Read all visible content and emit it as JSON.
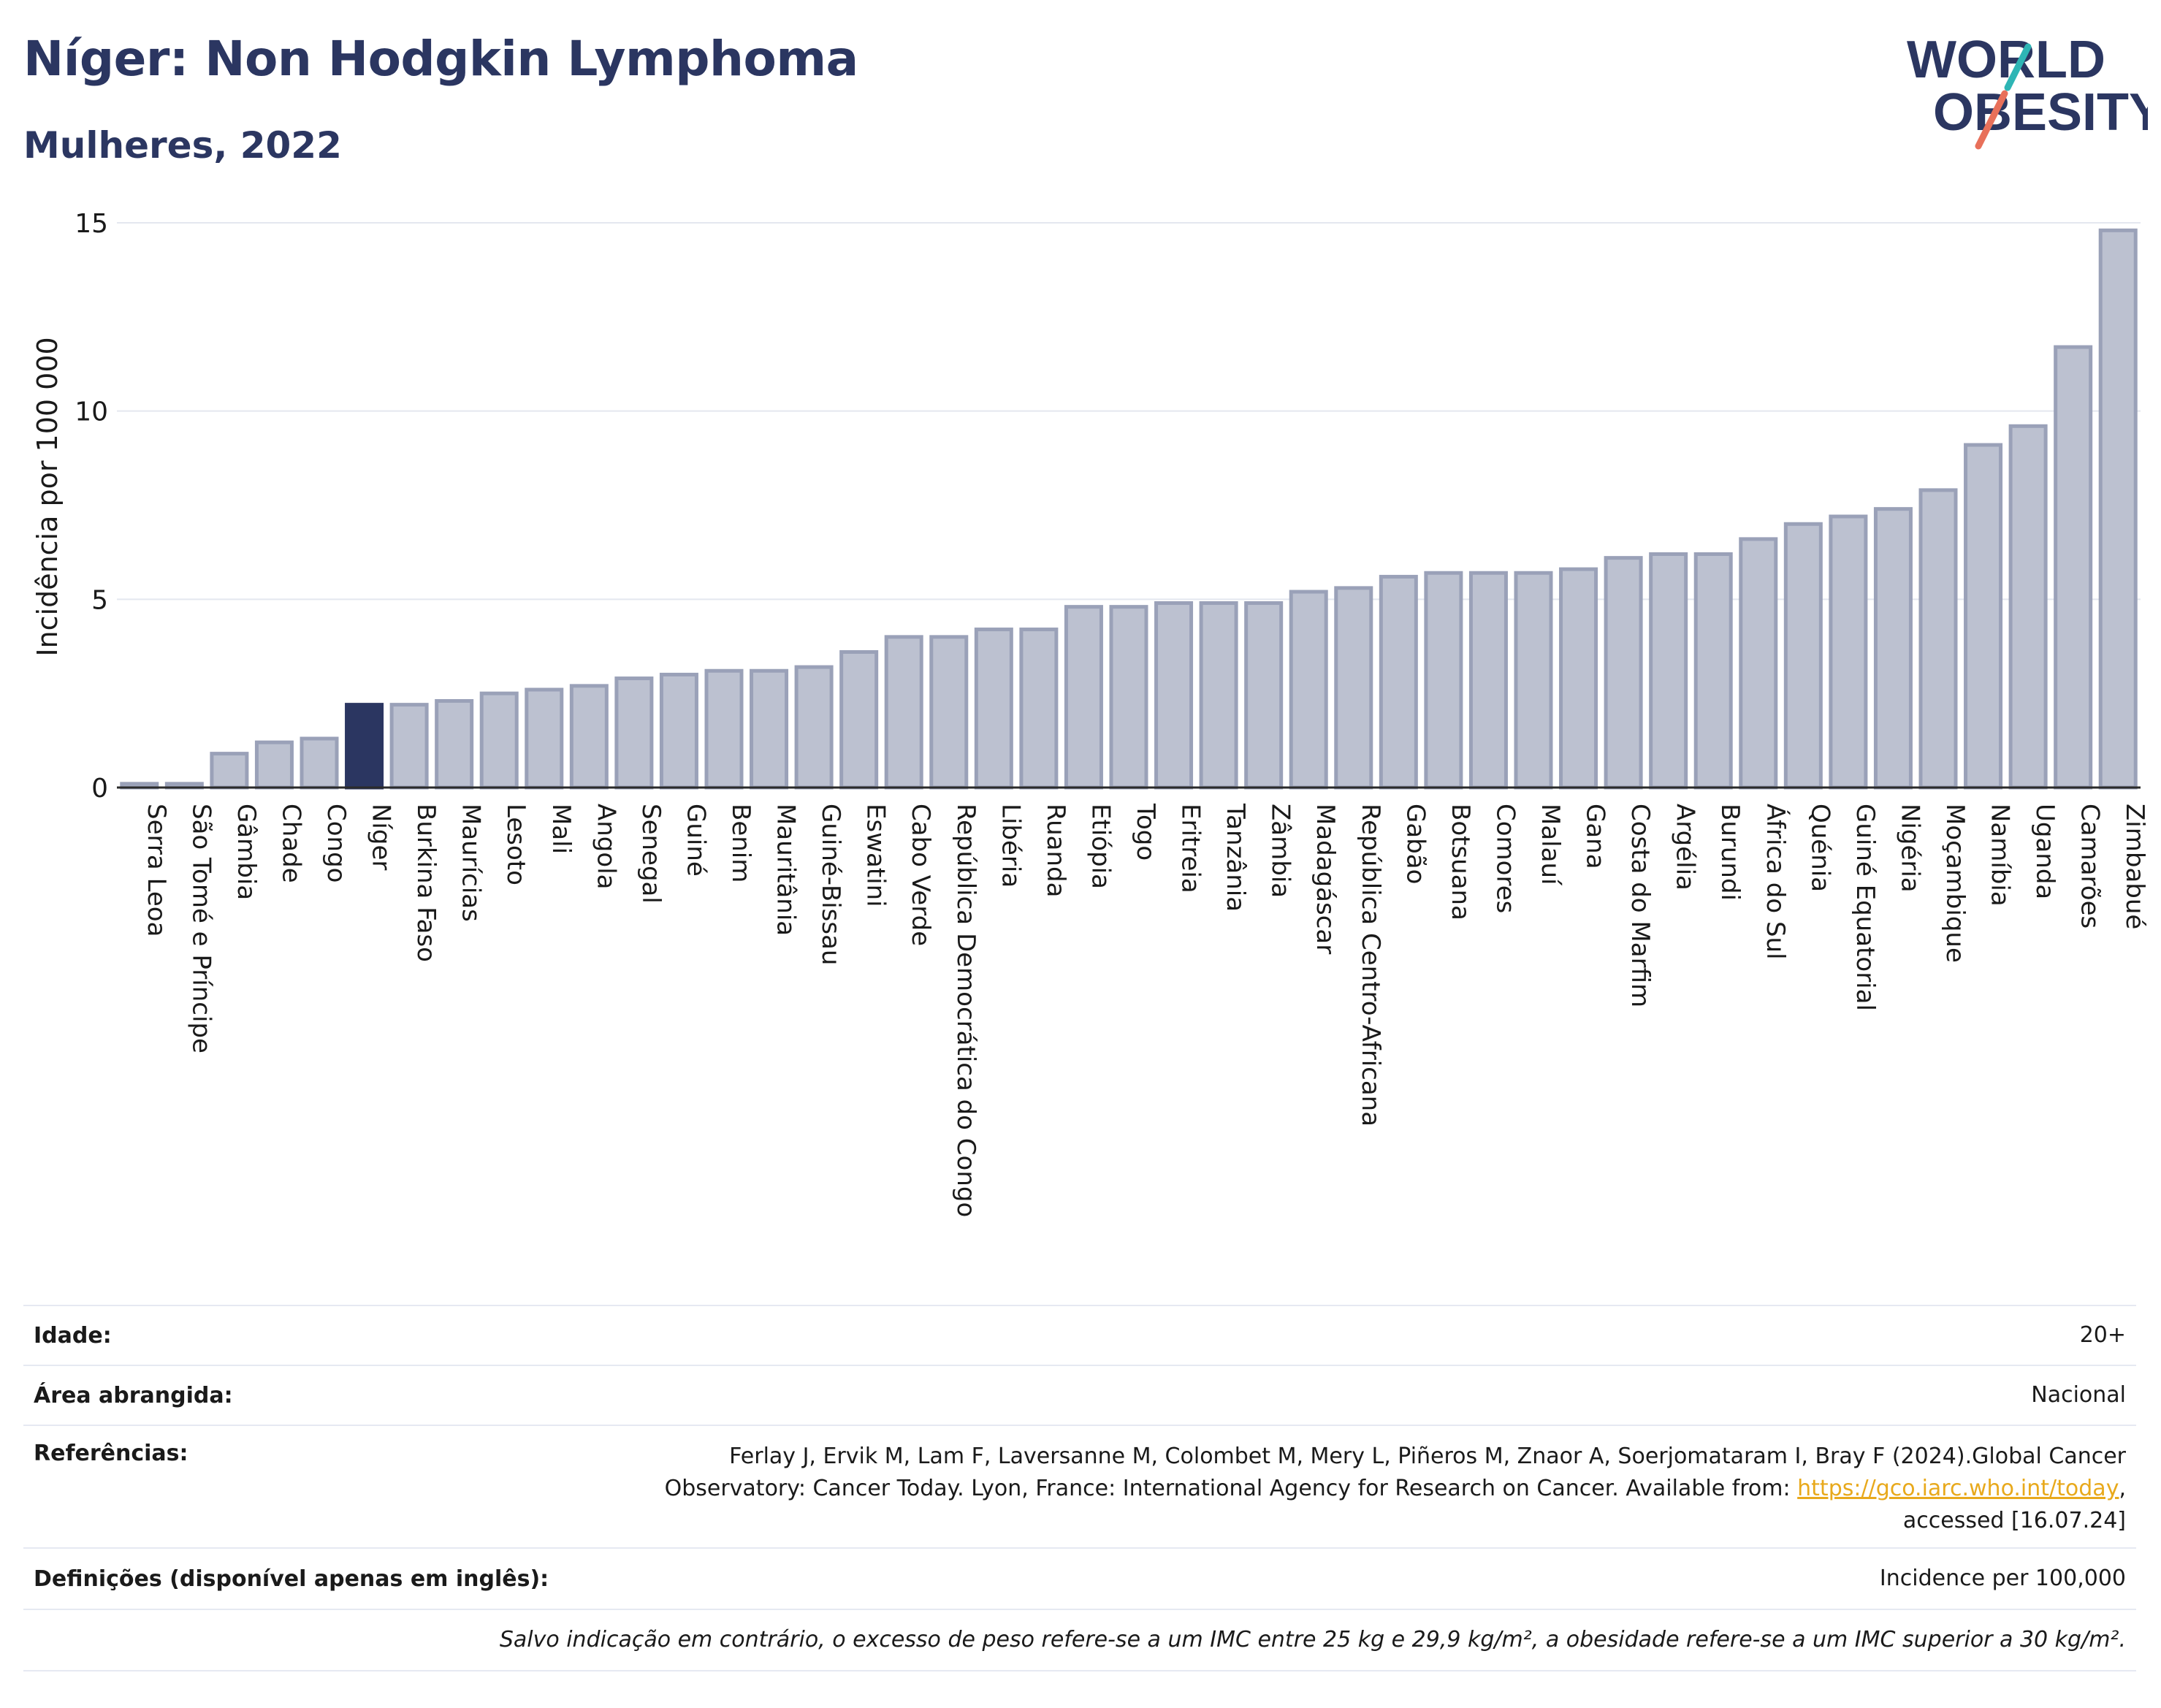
{
  "title": "Níger: Non Hodgkin Lymphoma",
  "subtitle": "Mulheres, 2022",
  "logo": {
    "line1": "WORLD",
    "line2": "OBESITY"
  },
  "colors": {
    "accent": "#2b3661",
    "bar": "#bcc1d0",
    "bar_border": "#9aa1b8",
    "highlight": "#2b3661",
    "link": "#e8a91c"
  },
  "chart_data": {
    "type": "bar",
    "ylabel": "Incidência por 100 000",
    "ylim": [
      0,
      15
    ],
    "yticks": [
      0,
      5,
      10,
      15
    ],
    "grid": true,
    "highlight": "Níger",
    "categories": [
      "Serra Leoa",
      "São Tomé e Príncipe",
      "Gâmbia",
      "Chade",
      "Congo",
      "Níger",
      "Burkina Faso",
      "Maurícias",
      "Lesoto",
      "Mali",
      "Angola",
      "Senegal",
      "Guiné",
      "Benim",
      "Mauritânia",
      "Guiné-Bissau",
      "Eswatini",
      "Cabo Verde",
      "República Democrática do Congo",
      "Libéria",
      "Ruanda",
      "Etiópia",
      "Togo",
      "Eritreia",
      "Tanzânia",
      "Zâmbia",
      "Madagáscar",
      "República Centro-Africana",
      "Gabão",
      "Botsuana",
      "Comores",
      "Malauí",
      "Gana",
      "Costa do Marfim",
      "Argélia",
      "Burundi",
      "África do Sul",
      "Quénia",
      "Guiné Equatorial",
      "Nigéria",
      "Moçambique",
      "Namíbia",
      "Uganda",
      "Camarões",
      "Zimbabué"
    ],
    "values": [
      0.1,
      0.1,
      0.9,
      1.2,
      1.3,
      2.2,
      2.2,
      2.3,
      2.5,
      2.6,
      2.7,
      2.9,
      3.0,
      3.1,
      3.1,
      3.2,
      3.6,
      4.0,
      4.0,
      4.2,
      4.2,
      4.8,
      4.8,
      4.9,
      4.9,
      4.9,
      5.2,
      5.3,
      5.6,
      5.7,
      5.7,
      5.7,
      5.8,
      6.1,
      6.2,
      6.2,
      6.6,
      7.0,
      7.2,
      7.4,
      7.9,
      9.1,
      9.6,
      11.7,
      14.8
    ]
  },
  "info": {
    "age_label": "Idade:",
    "age_value": "20+",
    "area_label": "Área abrangida:",
    "area_value": "Nacional",
    "refs_label": "Referências:",
    "refs_text1": "Ferlay J, Ervik M, Lam F, Laversanne M, Colombet M, Mery L, Piñeros M, Znaor A, Soerjomataram I, Bray F (2024).Global Cancer",
    "refs_text2": "Observatory: Cancer Today. Lyon, France: International Agency for Research on Cancer. Available from: ",
    "refs_link": "https://gco.iarc.who.int/today",
    "refs_text3": ",",
    "refs_text4": "accessed [16.07.24]",
    "defs_label": "Definições (disponível apenas em inglês):",
    "defs_value": "Incidence per 100,000",
    "note": "Salvo indicação em contrário, o excesso de peso refere-se a um IMC entre 25 kg e 29,9 kg/m², a obesidade refere-se a um IMC superior a 30 kg/m²."
  }
}
